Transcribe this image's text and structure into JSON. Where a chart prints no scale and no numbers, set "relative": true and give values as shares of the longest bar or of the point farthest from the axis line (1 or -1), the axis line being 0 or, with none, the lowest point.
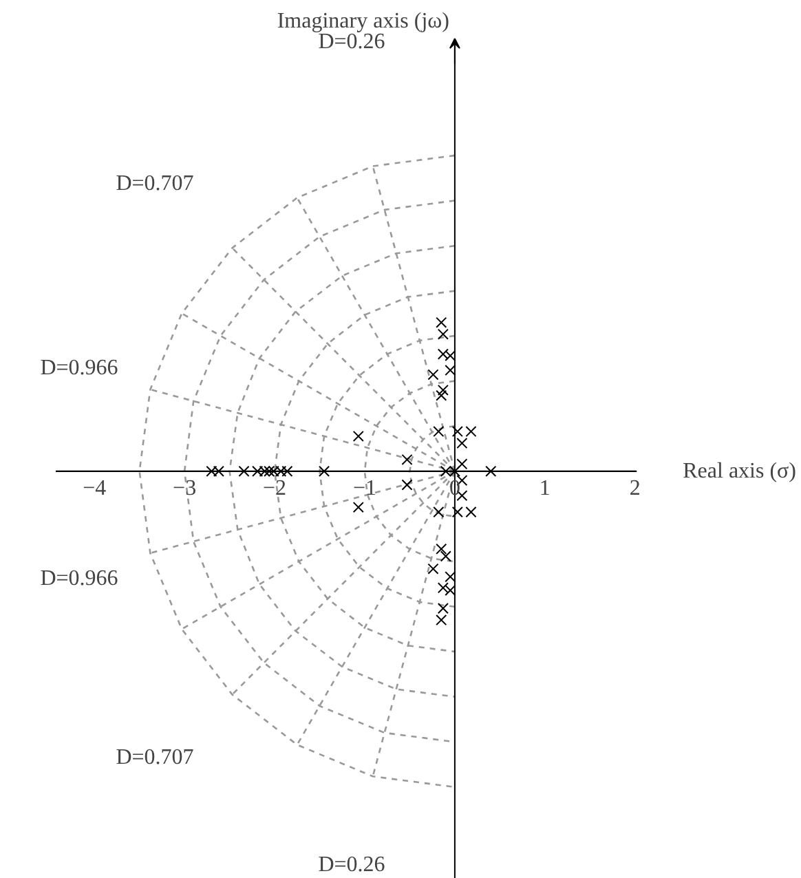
{
  "chart_data": {
    "type": "scatter",
    "relative": true,
    "xlabel": "Real axis (σ)",
    "xlim": [
      -5.04,
      3.85
    ],
    "xticks": [
      {
        "value": -4,
        "label": "−4"
      },
      {
        "value": -3,
        "label": "−3"
      },
      {
        "value": -2,
        "label": "−2"
      },
      {
        "value": -1,
        "label": "−1"
      },
      0,
      1,
      2
    ],
    "tick_labels": "x",
    "ref_lines": [
      {
        "axis": "x",
        "value": 0,
        "color": "#000000"
      }
    ],
    "annotations": [
      "Imaginary axis (jω)",
      "D=0.26",
      "D=0.707",
      "D=0.966",
      "D=0.966",
      "D=0.707",
      "D=0.26"
    ],
    "series": [
      {
        "type": "line",
        "color": "#999999",
        "line_style": "dashed",
        "x": [
          0,
          -0.91
        ],
        "values": [
          0,
          0.966
        ]
      },
      {
        "type": "line",
        "color": "#999999",
        "line_style": "dashed",
        "x": [
          0,
          -1.75
        ],
        "values": [
          0,
          0.866
        ]
      },
      {
        "type": "line",
        "color": "#999999",
        "line_style": "dashed",
        "x": [
          0,
          -2.47
        ],
        "values": [
          0,
          0.707
        ]
      },
      {
        "type": "line",
        "color": "#999999",
        "line_style": "dashed",
        "x": [
          0,
          -3.03
        ],
        "values": [
          0,
          0.5
        ]
      },
      {
        "type": "line",
        "color": "#999999",
        "line_style": "dashed",
        "x": [
          0,
          -3.38
        ],
        "values": [
          0,
          0.259
        ]
      },
      {
        "type": "line",
        "color": "#999999",
        "line_style": "dashed",
        "x": [
          0,
          -3.38
        ],
        "values": [
          0,
          -0.259
        ]
      },
      {
        "type": "line",
        "color": "#999999",
        "line_style": "dashed",
        "x": [
          0,
          -3.03
        ],
        "values": [
          0,
          -0.5
        ]
      },
      {
        "type": "line",
        "color": "#999999",
        "line_style": "dashed",
        "x": [
          0,
          -2.47
        ],
        "values": [
          0,
          -0.707
        ]
      },
      {
        "type": "line",
        "color": "#999999",
        "line_style": "dashed",
        "x": [
          0,
          -1.75
        ],
        "values": [
          0,
          -0.866
        ]
      },
      {
        "type": "line",
        "color": "#999999",
        "line_style": "dashed",
        "x": [
          0,
          -0.91
        ],
        "values": [
          0,
          -0.966
        ]
      },
      {
        "type": "line",
        "color": "#999999",
        "line_style": "dashed",
        "x": [
          0,
          -0.91,
          -1.75,
          -2.47,
          -3.03,
          -3.38,
          -3.5,
          -3.38,
          -3.03,
          -2.47,
          -1.75,
          -0.91,
          0
        ],
        "values": [
          1,
          0.966,
          0.866,
          0.707,
          0.5,
          0.259,
          0,
          -0.259,
          -0.5,
          -0.707,
          -0.866,
          -0.966,
          -1
        ]
      },
      {
        "type": "line",
        "color": "#999999",
        "line_style": "dashed",
        "x": [
          0,
          -0.78,
          -1.5,
          -2.12,
          -2.6,
          -2.9,
          -3,
          -2.9,
          -2.6,
          -2.12,
          -1.5,
          -0.78,
          0
        ],
        "values": [
          0.857,
          0.828,
          0.743,
          0.606,
          0.429,
          0.222,
          0,
          -0.222,
          -0.429,
          -0.606,
          -0.743,
          -0.828,
          -0.857
        ]
      },
      {
        "type": "line",
        "color": "#999999",
        "line_style": "dashed",
        "x": [
          0,
          -0.65,
          -1.25,
          -1.77,
          -2.17,
          -2.41,
          -2.5,
          -2.41,
          -2.17,
          -1.77,
          -1.25,
          -0.65,
          0
        ],
        "values": [
          0.714,
          0.69,
          0.619,
          0.505,
          0.357,
          0.185,
          0,
          -0.185,
          -0.357,
          -0.505,
          -0.619,
          -0.69,
          -0.714
        ]
      },
      {
        "type": "line",
        "color": "#999999",
        "line_style": "dashed",
        "x": [
          0,
          -0.52,
          -1,
          -1.41,
          -1.73,
          -1.93,
          -2,
          -1.93,
          -1.73,
          -1.41,
          -1,
          -0.52,
          0
        ],
        "values": [
          0.571,
          0.552,
          0.495,
          0.404,
          0.286,
          0.148,
          0,
          -0.148,
          -0.286,
          -0.404,
          -0.495,
          -0.552,
          -0.571
        ]
      },
      {
        "type": "line",
        "color": "#999999",
        "line_style": "dashed",
        "x": [
          0,
          -0.39,
          -0.75,
          -1.06,
          -1.3,
          -1.45,
          -1.5,
          -1.45,
          -1.3,
          -1.06,
          -0.75,
          -0.39,
          0
        ],
        "values": [
          0.429,
          0.414,
          0.371,
          0.303,
          0.214,
          0.111,
          0,
          -0.111,
          -0.214,
          -0.303,
          -0.371,
          -0.414,
          -0.429
        ]
      },
      {
        "type": "line",
        "color": "#999999",
        "line_style": "dashed",
        "x": [
          0,
          -0.26,
          -0.5,
          -0.71,
          -0.87,
          -0.97,
          -1,
          -0.97,
          -0.87,
          -0.71,
          -0.5,
          -0.26,
          0
        ],
        "values": [
          0.286,
          0.276,
          0.247,
          0.202,
          0.143,
          0.074,
          0,
          -0.074,
          -0.143,
          -0.202,
          -0.247,
          -0.276,
          -0.286
        ]
      },
      {
        "type": "line",
        "color": "#999999",
        "line_style": "dashed",
        "x": [
          0,
          -0.13,
          -0.25,
          -0.35,
          -0.43,
          -0.48,
          -0.5,
          -0.48,
          -0.43,
          -0.35,
          -0.25,
          -0.13,
          0
        ],
        "values": [
          0.143,
          0.138,
          0.124,
          0.101,
          0.071,
          0.037,
          0,
          -0.037,
          -0.071,
          -0.101,
          -0.124,
          -0.138,
          -0.143
        ]
      },
      {
        "color": "#000000",
        "marker": "cross",
        "x": [
          -0.15,
          -0.13,
          -0.13,
          -0.05,
          -0.05,
          -0.24,
          -0.13,
          -0.15,
          -0.15,
          -0.13,
          -0.13,
          -0.05,
          -0.05,
          -0.24,
          -0.1,
          -0.15,
          -0.18,
          0.03,
          0.18,
          0.08,
          0.08,
          -0.18,
          0.03,
          0.18,
          0.08,
          0.08,
          -0.53,
          -0.53,
          -1.07,
          -1.07,
          -0.1,
          0,
          0.4,
          -2.7,
          -2.62,
          -2.34,
          -2.19,
          -2.11,
          -2.06,
          -2.01,
          -1.93,
          -1.86,
          -1.45
        ],
        "values": [
          0.471,
          0.434,
          0.371,
          0.366,
          0.32,
          0.306,
          0.257,
          0.24,
          -0.471,
          -0.434,
          -0.369,
          -0.377,
          -0.334,
          -0.309,
          -0.269,
          -0.246,
          0.126,
          0.126,
          0.126,
          0.089,
          0.023,
          -0.129,
          -0.129,
          -0.129,
          -0.077,
          -0.029,
          0.037,
          -0.043,
          0.111,
          -0.114,
          0,
          0,
          0,
          0,
          0,
          0,
          0,
          0,
          0,
          0,
          0,
          0,
          0
        ]
      }
    ]
  }
}
